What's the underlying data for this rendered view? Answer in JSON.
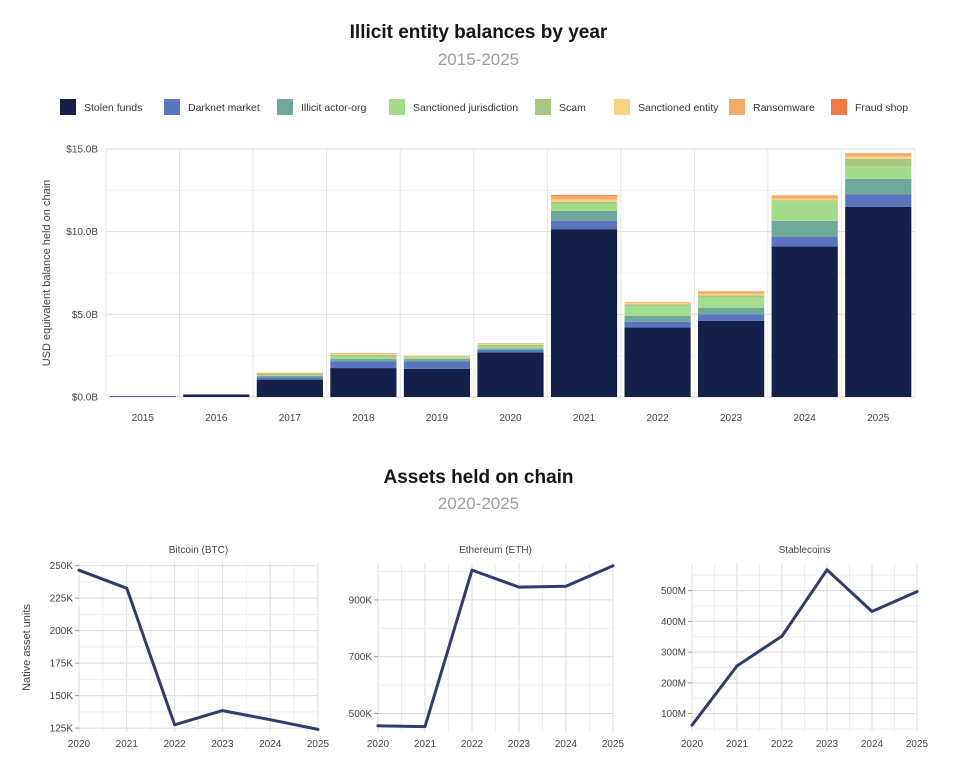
{
  "title": "Illicit entity balances by year",
  "subtitle": "2015-2025",
  "title2": "Assets held on chain",
  "subtitle2": "2020-2025",
  "chart_data": [
    {
      "type": "bar",
      "stacked": true,
      "ylabel": "USD equivalent balance held on chain",
      "categories": [
        "2015",
        "2016",
        "2017",
        "2018",
        "2019",
        "2020",
        "2021",
        "2022",
        "2023",
        "2024",
        "2025"
      ],
      "yticks": [
        "$0.0B",
        "$5.0B",
        "$10.0B",
        "$15.0B"
      ],
      "ylim": [
        0,
        15.0
      ],
      "legend_position": "top",
      "grid": true,
      "series": [
        {
          "name": "Stolen funds",
          "color": "#14204a",
          "values": [
            0.05,
            0.15,
            1.05,
            1.75,
            1.7,
            2.7,
            10.15,
            4.2,
            4.6,
            9.1,
            11.5
          ]
        },
        {
          "name": "Darknet market",
          "color": "#5b74c0",
          "values": [
            0.01,
            0.02,
            0.15,
            0.4,
            0.45,
            0.15,
            0.5,
            0.35,
            0.4,
            0.6,
            0.75
          ]
        },
        {
          "name": "Illicit actor-org",
          "color": "#6ea89a",
          "values": [
            0.0,
            0.0,
            0.07,
            0.15,
            0.15,
            0.1,
            0.6,
            0.35,
            0.4,
            0.95,
            0.95
          ]
        },
        {
          "name": "Sanctioned jurisdiction",
          "color": "#a4dc8e",
          "values": [
            0.0,
            0.0,
            0.05,
            0.15,
            0.1,
            0.1,
            0.45,
            0.6,
            0.6,
            1.2,
            0.75
          ]
        },
        {
          "name": "Scam",
          "color": "#a5c781",
          "values": [
            0.0,
            0.0,
            0.1,
            0.1,
            0.05,
            0.1,
            0.1,
            0.1,
            0.15,
            0.05,
            0.45
          ]
        },
        {
          "name": "Sanctioned entity",
          "color": "#f7d483",
          "values": [
            0.0,
            0.0,
            0.03,
            0.05,
            0.02,
            0.05,
            0.15,
            0.1,
            0.1,
            0.1,
            0.15
          ]
        },
        {
          "name": "Ransomware",
          "color": "#f8a868",
          "values": [
            0.0,
            0.0,
            0.02,
            0.05,
            0.03,
            0.05,
            0.2,
            0.05,
            0.15,
            0.2,
            0.2
          ]
        },
        {
          "name": "Fraud shop",
          "color": "#f07a45",
          "values": [
            0.0,
            0.0,
            0.0,
            0.0,
            0.0,
            0.0,
            0.07,
            0.0,
            0.0,
            0.0,
            0.0
          ]
        }
      ]
    },
    {
      "type": "line",
      "title": "Bitcoin (BTC)",
      "ylabel": "Native asset units",
      "x": [
        "2020",
        "2021",
        "2022",
        "2023",
        "2024",
        "2025"
      ],
      "values": [
        246500,
        232500,
        127500,
        138500,
        131500,
        124000
      ],
      "ylim": [
        122000,
        252000
      ],
      "yticks": [
        125000,
        150000,
        175000,
        200000,
        225000,
        250000
      ],
      "ytick_labels": [
        "125K",
        "150K",
        "175K",
        "200K",
        "225K",
        "250K"
      ],
      "color": "#2f3b73"
    },
    {
      "type": "line",
      "title": "Ethereum (ETH)",
      "x": [
        "2020",
        "2021",
        "2022",
        "2023",
        "2024",
        "2025"
      ],
      "values": [
        457000,
        454000,
        1005000,
        945000,
        948000,
        1020000
      ],
      "ylim": [
        435000,
        1030000
      ],
      "yticks": [
        500000,
        700000,
        900000
      ],
      "ytick_labels": [
        "500K",
        "700K",
        "900K"
      ],
      "color": "#2f3b73"
    },
    {
      "type": "line",
      "title": "Stablecoins",
      "x": [
        "2020",
        "2021",
        "2022",
        "2023",
        "2024",
        "2025"
      ],
      "values": [
        62000000,
        255000000,
        352000000,
        568000000,
        432000000,
        497000000
      ],
      "ylim": [
        40000000,
        590000000
      ],
      "yticks": [
        100000000,
        200000000,
        300000000,
        400000000,
        500000000
      ],
      "ytick_labels": [
        "100M",
        "200M",
        "300M",
        "400M",
        "500M"
      ],
      "color": "#2f3b73"
    }
  ]
}
